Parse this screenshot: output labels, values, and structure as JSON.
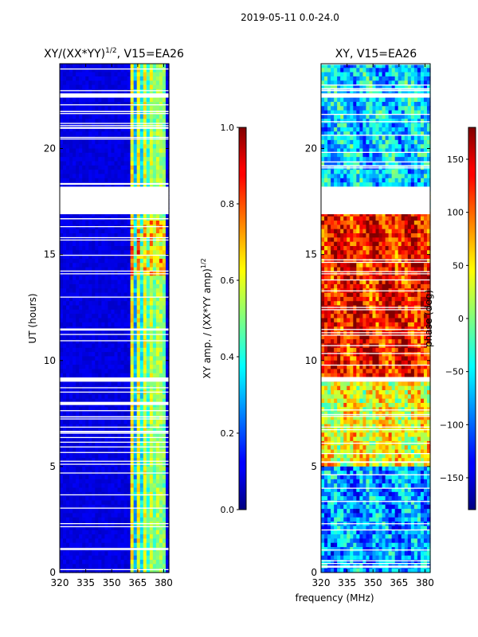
{
  "figure": {
    "suptitle": "2019-05-11 0.0-24.0",
    "common_xlabel": "frequency (MHz)"
  },
  "chart_data": [
    {
      "type": "heatmap",
      "title": "XY/(XX*YY)",
      "title_exponent": "1/2",
      "title_suffix": ", V15=EA26",
      "xlabel": "",
      "ylabel": "UT (hours)",
      "xlim": [
        320,
        383
      ],
      "ylim": [
        0,
        24
      ],
      "xticks": [
        320,
        335,
        350,
        365,
        380
      ],
      "yticks": [
        0,
        5,
        10,
        15,
        20
      ],
      "colormap": "jet",
      "colorbar": {
        "label": "XY amp. / (XX*YY amp)",
        "label_exponent": "1/2",
        "range": [
          0.0,
          1.0
        ],
        "ticks": [
          "0.0",
          "0.2",
          "0.4",
          "0.6",
          "0.8",
          "1.0"
        ]
      },
      "gaps_hours": [
        [
          16.9,
          18.2
        ],
        [
          22.4,
          22.6
        ],
        [
          9.0,
          9.2
        ],
        [
          7.9,
          8.05
        ]
      ],
      "high_value_band_MHz": [
        360,
        381
      ],
      "flare_hours": [
        14,
        16.6
      ]
    },
    {
      "type": "heatmap",
      "title": "XY",
      "title_suffix": ", V15=EA26",
      "xlabel": "frequency (MHz)",
      "ylabel": "",
      "xlim": [
        320,
        383
      ],
      "ylim": [
        0,
        24
      ],
      "xticks": [
        320,
        335,
        350,
        365,
        380
      ],
      "yticks": [
        0,
        5,
        10,
        15,
        20
      ],
      "colormap": "jet",
      "colorbar": {
        "label": "phase (deg)",
        "range": [
          -180,
          180
        ],
        "ticks": [
          "−150",
          "−100",
          "−50",
          "0",
          "50",
          "100",
          "150"
        ]
      },
      "gaps_hours": [
        [
          16.9,
          18.2
        ],
        [
          22.4,
          22.6
        ],
        [
          9.0,
          9.2
        ]
      ],
      "phase_trend": [
        {
          "hours": [
            0,
            5
          ],
          "phase_deg": -80
        },
        {
          "hours": [
            5,
            9
          ],
          "phase_deg": 40
        },
        {
          "hours": [
            9,
            17
          ],
          "phase_deg": 130
        },
        {
          "hours": [
            18,
            24
          ],
          "phase_deg": -60
        }
      ]
    }
  ]
}
